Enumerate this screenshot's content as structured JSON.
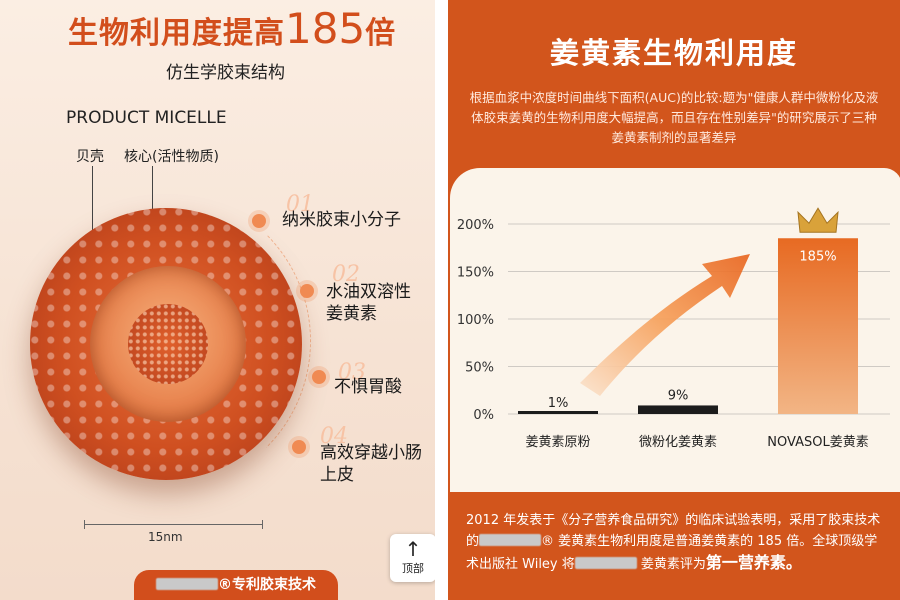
{
  "left": {
    "headline_prefix": "生物利用度提高",
    "headline_number": "185",
    "headline_suffix": "倍",
    "subhead": "仿生学胶束结构",
    "micelle_title": "PRODUCT MICELLE",
    "label_shell": "贝壳",
    "label_core": "核心(活性物质)",
    "features": [
      {
        "num": "01",
        "text": "纳米胶束小分子"
      },
      {
        "num": "02",
        "text": "水油双溶性\n姜黄素"
      },
      {
        "num": "03",
        "text": "不惧胃酸"
      },
      {
        "num": "04",
        "text": "高效穿越小肠\n上皮"
      }
    ],
    "scale_label": "15nm",
    "back_to_top_arrow": "↑",
    "back_to_top_label": "顶部",
    "patent_symbol": "®",
    "patent_label": "专利胶束技术"
  },
  "right": {
    "title": "姜黄素生物利用度",
    "intro": "根据血浆中浓度时间曲线下面积(AUC)的比较:题为\"健康人群中微粉化及液体胶束姜黄的生物利用度大幅提高，而且存在性别差异\"的研究展示了三种姜黄素制剂的显著差异",
    "footer_part1": "2012 年发表于《分子营养食品研究》的临床试验表明，采用了胶束技术的",
    "footer_symbol": "®",
    "footer_part2": " 姜黄素生物利用度是普通姜黄素的 185 倍。全球顶级学术出版社 Wiley 将",
    "footer_part3": " 姜黄素评为",
    "footer_strong": "第一营养素。"
  },
  "chart_data": {
    "type": "bar",
    "categories": [
      "姜黄素原粉",
      "微粉化姜黄素",
      "NOVASOL姜黄素"
    ],
    "values": [
      1,
      9,
      185
    ],
    "value_labels": [
      "1%",
      "9%",
      "185%"
    ],
    "yticks": [
      "0%",
      "50%",
      "100%",
      "150%",
      "200%"
    ],
    "ylim": [
      0,
      200
    ],
    "grid": true,
    "colors": {
      "bar_dark": "#1c1c1c",
      "bar_highlight": "#e2621f",
      "crown": "#d9a23a"
    }
  }
}
